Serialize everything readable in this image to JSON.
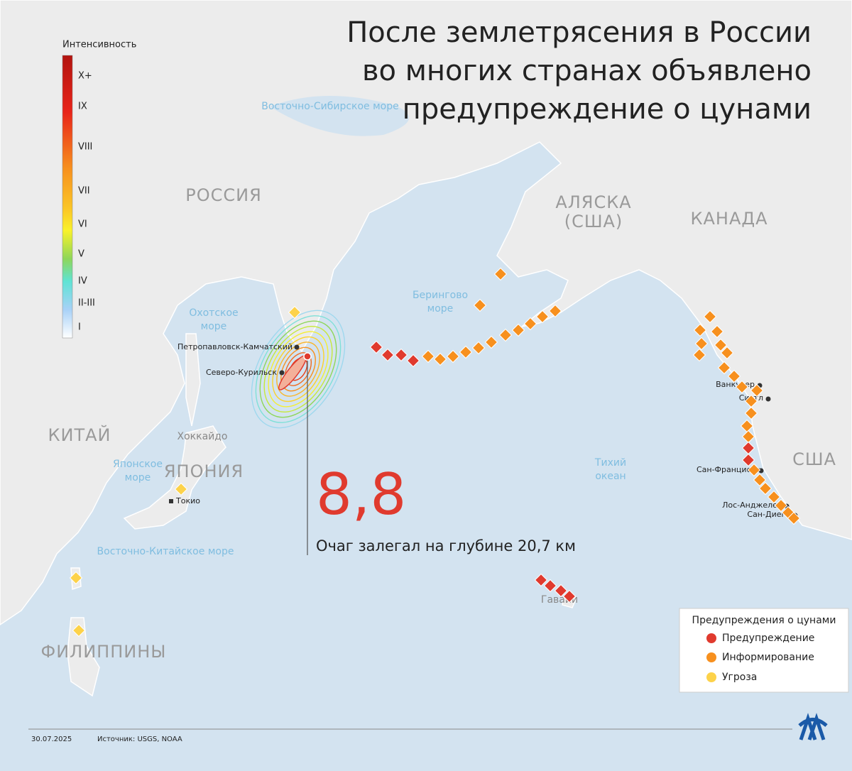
{
  "title": [
    "После землетрясения в России",
    "во многих странах объявлено",
    "предупреждение о цунами"
  ],
  "intensity_legend": {
    "title": "Интенсивность",
    "levels": [
      "X+",
      "IX",
      "VIII",
      "VII",
      "VI",
      "V",
      "IV",
      "II-III",
      "I"
    ]
  },
  "map_labels": {
    "countries": [
      "РОССИЯ",
      [
        "АЛЯСКА",
        "(США)"
      ],
      "КАНАДА",
      "США",
      "КИТАЙ",
      "ЯПОНИЯ",
      "ФИЛИППИНЫ"
    ],
    "seas": [
      [
        "Охотское",
        "море"
      ],
      [
        "Берингово",
        "море"
      ],
      "Восточно-Сибирское море",
      [
        "Японское",
        "море"
      ],
      "Восточно-Китайское море",
      [
        "Тихий",
        "океан"
      ]
    ],
    "islands": [
      "Хоккайдо",
      "Гавайи"
    ]
  },
  "cities": [
    "Петропавловск-Камчатский",
    "Северо-Курильск",
    "Токио",
    "Ванкувер",
    "Сиэтл",
    "Сан-Франциско",
    "Лос-Анджелес",
    "Сан-Диего"
  ],
  "epicenter": {
    "magnitude": "8,8",
    "depth": "Очаг залегал на глубине 20,7 км"
  },
  "tsunami_legend": {
    "title": "Предупреждения о цунами",
    "items": [
      "Предупреждение",
      "Информирование",
      "Угроза"
    ]
  },
  "footer": {
    "date": "30.07.2025",
    "source": "Источник: USGS, NOAA"
  }
}
